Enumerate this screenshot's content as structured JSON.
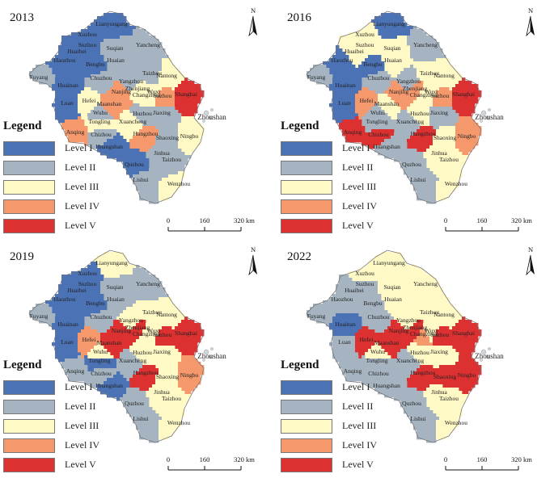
{
  "colors": {
    "level_1": "#4a72b5",
    "level_2": "#a5b4c0",
    "level_3": "#fff9c5",
    "level_4": "#f5996d",
    "level_5": "#dd3131"
  },
  "legend": {
    "title": "Legend",
    "items": [
      {
        "label": "Level I",
        "level": 1
      },
      {
        "label": "Level II",
        "level": 2
      },
      {
        "label": "Level III",
        "level": 3
      },
      {
        "label": "Level IV",
        "level": 4
      },
      {
        "label": "Level V",
        "level": 5
      }
    ]
  },
  "scale_bar": {
    "ticks": [
      "0",
      "160",
      "320 km"
    ]
  },
  "north_arrow": {
    "label": "N"
  },
  "island_label": "Zhoushan",
  "cities": [
    "Lianyungang",
    "Xuzhou",
    "Suzhou",
    "Huaibei",
    "Suqian",
    "Huaian",
    "Yancheng",
    "Haozhou",
    "Bengbu",
    "Fuyang",
    "Chuzhou",
    "Yangzhou",
    "Taizhou",
    "Nantong",
    "Huainan",
    "Zhenjiang",
    "Changzhou",
    "Luan",
    "Hefei",
    "Nanjing",
    "Wuxi",
    "Suzhou",
    "Shanghai",
    "Maanshan",
    "Wuhu",
    "Huzhou",
    "Jiaxing",
    "Tongling",
    "Xuancheng",
    "Chizhou",
    "Anqing",
    "Hangzhou",
    "Shaoxing",
    "Ningbo",
    "Huangshan",
    "Jinhua",
    "Taizhou",
    "Quzhou",
    "Lishui",
    "Wenzhou"
  ],
  "panels": [
    {
      "year": "2013",
      "levels": [
        1,
        1,
        1,
        1,
        2,
        2,
        2,
        1,
        1,
        2,
        2,
        2,
        2,
        3,
        1,
        3,
        3,
        1,
        3,
        4,
        3,
        4,
        5,
        4,
        2,
        2,
        2,
        3,
        3,
        2,
        4,
        4,
        2,
        3,
        1,
        2,
        2,
        1,
        2,
        3
      ]
    },
    {
      "year": "2016",
      "levels": [
        1,
        3,
        3,
        3,
        3,
        3,
        2,
        1,
        1,
        2,
        2,
        2,
        3,
        3,
        1,
        4,
        3,
        1,
        4,
        4,
        3,
        4,
        5,
        3,
        2,
        3,
        2,
        2,
        2,
        5,
        5,
        5,
        3,
        4,
        2,
        3,
        3,
        2,
        2,
        3
      ]
    },
    {
      "year": "2019",
      "levels": [
        3,
        1,
        1,
        1,
        2,
        2,
        2,
        1,
        1,
        2,
        2,
        3,
        3,
        3,
        1,
        5,
        3,
        1,
        4,
        5,
        3,
        5,
        5,
        5,
        3,
        3,
        3,
        1,
        2,
        2,
        2,
        5,
        3,
        4,
        1,
        3,
        3,
        2,
        2,
        3
      ]
    },
    {
      "year": "2022",
      "levels": [
        3,
        3,
        2,
        2,
        3,
        3,
        3,
        2,
        2,
        2,
        2,
        3,
        3,
        3,
        1,
        5,
        4,
        2,
        5,
        5,
        3,
        5,
        5,
        5,
        3,
        3,
        3,
        2,
        2,
        2,
        2,
        5,
        5,
        5,
        2,
        3,
        3,
        2,
        2,
        3
      ]
    }
  ]
}
